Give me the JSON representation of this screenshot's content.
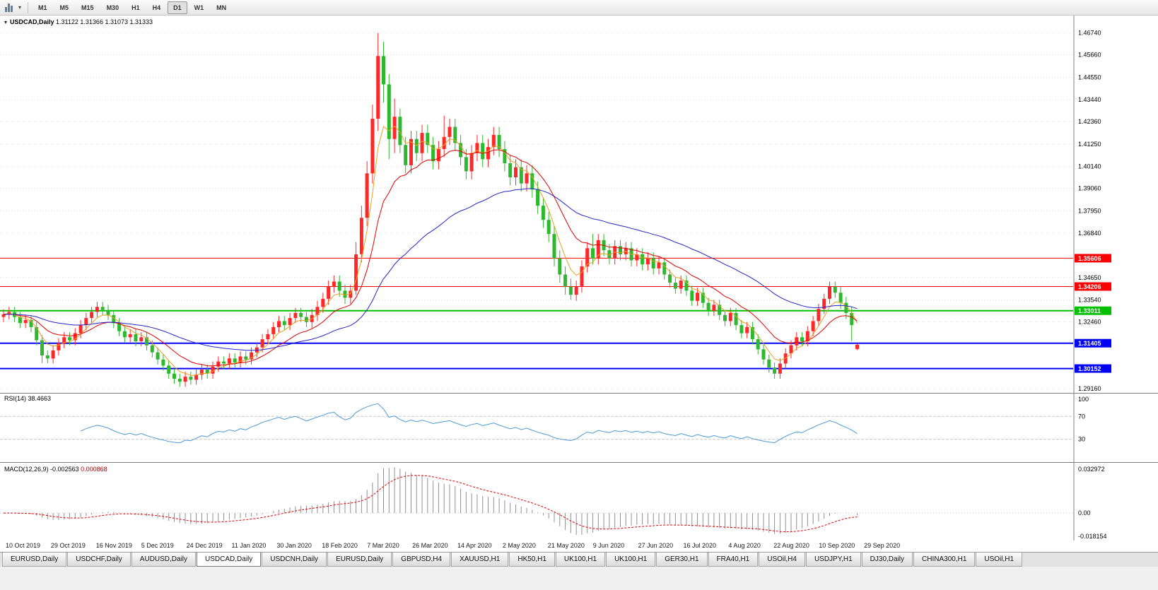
{
  "toolbar": {
    "timeframes": [
      "M1",
      "M5",
      "M15",
      "M30",
      "H1",
      "H4",
      "D1",
      "W1",
      "MN"
    ],
    "active_timeframe": "D1"
  },
  "chart": {
    "symbol_title": "USDCAD,Daily",
    "ohlc_text": "1.31122 1.31366 1.31073 1.31333",
    "colors": {
      "up": "#ff2828",
      "down": "#2eb82e",
      "grid": "#dcdcdc",
      "rsi_line": "#4f9bd5",
      "macd_hist": "#909090",
      "macd_signal": "#e00000",
      "divider": "#808080"
    },
    "overlays": [
      {
        "name": "ma-fast-line",
        "period": 5,
        "color": "#e8a020",
        "width": 1
      },
      {
        "name": "ma-mid-line",
        "period": 13,
        "color": "#e00000",
        "width": 1
      },
      {
        "name": "ma-slow-line",
        "period": 40,
        "color": "#2424c8",
        "width": 1
      }
    ]
  },
  "price_axis": {
    "labels": [
      "1.46740",
      "1.45660",
      "1.44550",
      "1.43440",
      "1.42360",
      "1.41250",
      "1.40140",
      "1.39060",
      "1.37950",
      "1.36840",
      "1.34650",
      "1.33540",
      "1.32460",
      "1.29160"
    ],
    "levels": [
      {
        "text": "1.35606",
        "price": 1.35606,
        "color": "#ff0000",
        "lw": 1
      },
      {
        "text": "1.34206",
        "price": 1.34206,
        "color": "#ff0000",
        "lw": 1
      },
      {
        "text": "1.33011",
        "price": 1.33011,
        "color": "#00c000",
        "lw": 2
      },
      {
        "text": "1.31405",
        "price": 1.31405,
        "color": "#0000ff",
        "lw": 2
      },
      {
        "text": "1.30152",
        "price": 1.30152,
        "color": "#0000ff",
        "lw": 2
      }
    ]
  },
  "rsi_panel": {
    "name": "RSI(14)",
    "value": "38.4663",
    "axis_labels": [
      "100",
      "70",
      "30"
    ],
    "level_lines": [
      70,
      30
    ]
  },
  "macd_panel": {
    "name": "MACD(12,26,9)",
    "main_value": "-0.002563",
    "signal_value": "0.000868",
    "axis_top": "0.032972",
    "axis_zero": "0.00",
    "axis_bottom": "-0.018154"
  },
  "time_axis": {
    "labels": [
      "10 Oct 2019",
      "29 Oct 2019",
      "16 Nov 2019",
      "5 Dec 2019",
      "24 Dec 2019",
      "11 Jan 2020",
      "30 Jan 2020",
      "18 Feb 2020",
      "7 Mar 2020",
      "26 Mar 2020",
      "14 Apr 2020",
      "2 May 2020",
      "21 May 2020",
      "9 Jun 2020",
      "27 Jun 2020",
      "16 Jul 2020",
      "4 Aug 2020",
      "22 Aug 2020",
      "10 Sep 2020",
      "29 Sep 2020"
    ]
  },
  "tabs": {
    "items": [
      "EURUSD,Daily",
      "USDCHF,Daily",
      "AUDUSD,Daily",
      "USDCAD,Daily",
      "USDCNH,Daily",
      "EURUSD,Daily",
      "GBPUSD,H4",
      "XAUUSD,H1",
      "HK50,H1",
      "UK100,H1",
      "UK100,H1",
      "GER30,H1",
      "FRA40,H1",
      "USOil,H4",
      "USDJPY,H1",
      "DJ30,Daily",
      "CHINA300,H1",
      "USOil,H1"
    ],
    "active_index": 3
  },
  "chart_data": {
    "type": "candlestick",
    "symbol": "USDCAD",
    "timeframe": "Daily",
    "title": "USDCAD,Daily",
    "ohlc_current": {
      "open": 1.31122,
      "high": 1.31366,
      "low": 1.31073,
      "close": 1.31333
    },
    "price_range": [
      1.2895,
      1.476
    ],
    "indicator_values": {
      "rsi": 38.4663,
      "macd_main": -0.002563,
      "macd_signal": 0.000868
    },
    "candles": [
      [
        1.327,
        1.3308,
        1.3245,
        1.3283
      ],
      [
        1.3283,
        1.332,
        1.3258,
        1.3295
      ],
      [
        1.3295,
        1.332,
        1.3245,
        1.327
      ],
      [
        1.327,
        1.3295,
        1.3215,
        1.324
      ],
      [
        1.324,
        1.328,
        1.3215,
        1.3255
      ],
      [
        1.3255,
        1.328,
        1.3195,
        1.322
      ],
      [
        1.322,
        1.3245,
        1.313,
        1.3155
      ],
      [
        1.3155,
        1.318,
        1.3042,
        1.308
      ],
      [
        1.308,
        1.3105,
        1.3042,
        1.3065
      ],
      [
        1.3065,
        1.313,
        1.304,
        1.3105
      ],
      [
        1.3105,
        1.3165,
        1.308,
        1.314
      ],
      [
        1.314,
        1.3195,
        1.3115,
        1.317
      ],
      [
        1.317,
        1.3195,
        1.313,
        1.3155
      ],
      [
        1.3155,
        1.3215,
        1.313,
        1.319
      ],
      [
        1.319,
        1.3255,
        1.3165,
        1.323
      ],
      [
        1.323,
        1.329,
        1.3205,
        1.3265
      ],
      [
        1.3265,
        1.332,
        1.324,
        1.3295
      ],
      [
        1.3295,
        1.3345,
        1.327,
        1.332
      ],
      [
        1.332,
        1.3345,
        1.328,
        1.3305
      ],
      [
        1.3305,
        1.333,
        1.3255,
        1.328
      ],
      [
        1.328,
        1.3305,
        1.3215,
        1.324
      ],
      [
        1.324,
        1.3265,
        1.3175,
        1.32
      ],
      [
        1.32,
        1.3225,
        1.3145,
        1.317
      ],
      [
        1.317,
        1.321,
        1.3145,
        1.3185
      ],
      [
        1.3185,
        1.321,
        1.3125,
        1.315
      ],
      [
        1.315,
        1.3195,
        1.3125,
        1.317
      ],
      [
        1.317,
        1.3195,
        1.3105,
        1.313
      ],
      [
        1.313,
        1.3155,
        1.307,
        1.3095
      ],
      [
        1.3095,
        1.312,
        1.3035,
        1.306
      ],
      [
        1.306,
        1.3085,
        1.3005,
        1.303
      ],
      [
        1.303,
        1.3055,
        1.2965,
        1.299
      ],
      [
        1.299,
        1.3015,
        1.294,
        1.2965
      ],
      [
        1.2965,
        1.299,
        1.2925,
        1.295
      ],
      [
        1.295,
        1.3,
        1.2925,
        1.2975
      ],
      [
        1.2975,
        1.3,
        1.2935,
        1.296
      ],
      [
        1.296,
        1.301,
        1.2935,
        1.2985
      ],
      [
        1.2985,
        1.3035,
        1.296,
        1.301
      ],
      [
        1.301,
        1.3035,
        1.2965,
        1.299
      ],
      [
        1.299,
        1.305,
        1.2965,
        1.3025
      ],
      [
        1.3025,
        1.3075,
        1.3,
        1.305
      ],
      [
        1.305,
        1.3075,
        1.3015,
        1.304
      ],
      [
        1.304,
        1.309,
        1.3015,
        1.3065
      ],
      [
        1.3065,
        1.309,
        1.302,
        1.3045
      ],
      [
        1.3045,
        1.31,
        1.302,
        1.3075
      ],
      [
        1.3075,
        1.31,
        1.3035,
        1.306
      ],
      [
        1.306,
        1.312,
        1.3035,
        1.3095
      ],
      [
        1.3095,
        1.3145,
        1.307,
        1.312
      ],
      [
        1.312,
        1.3185,
        1.3095,
        1.316
      ],
      [
        1.316,
        1.321,
        1.3135,
        1.3185
      ],
      [
        1.3185,
        1.3245,
        1.316,
        1.322
      ],
      [
        1.322,
        1.3275,
        1.3195,
        1.325
      ],
      [
        1.325,
        1.3275,
        1.3205,
        1.323
      ],
      [
        1.323,
        1.329,
        1.3205,
        1.3265
      ],
      [
        1.3265,
        1.3315,
        1.324,
        1.329
      ],
      [
        1.329,
        1.3315,
        1.3245,
        1.327
      ],
      [
        1.327,
        1.3295,
        1.322,
        1.3245
      ],
      [
        1.3245,
        1.331,
        1.3215,
        1.328
      ],
      [
        1.328,
        1.335,
        1.325,
        1.332
      ],
      [
        1.332,
        1.339,
        1.329,
        1.336
      ],
      [
        1.336,
        1.345,
        1.333,
        1.342
      ],
      [
        1.342,
        1.3475,
        1.339,
        1.3445
      ],
      [
        1.3445,
        1.3475,
        1.337,
        1.34
      ],
      [
        1.34,
        1.343,
        1.3335,
        1.3365
      ],
      [
        1.3365,
        1.343,
        1.3335,
        1.34
      ],
      [
        1.34,
        1.364,
        1.338,
        1.358
      ],
      [
        1.358,
        1.382,
        1.354,
        1.376
      ],
      [
        1.376,
        1.404,
        1.372,
        1.398
      ],
      [
        1.398,
        1.432,
        1.393,
        1.425
      ],
      [
        1.425,
        1.4674,
        1.419,
        1.456
      ],
      [
        1.456,
        1.463,
        1.433,
        1.442
      ],
      [
        1.442,
        1.447,
        1.405,
        1.415
      ],
      [
        1.415,
        1.435,
        1.408,
        1.426
      ],
      [
        1.426,
        1.43,
        1.408,
        1.412
      ],
      [
        1.412,
        1.416,
        1.398,
        1.402
      ],
      [
        1.402,
        1.419,
        1.398,
        1.415
      ],
      [
        1.415,
        1.419,
        1.404,
        1.408
      ],
      [
        1.408,
        1.422,
        1.404,
        1.418
      ],
      [
        1.418,
        1.422,
        1.408,
        1.412
      ],
      [
        1.412,
        1.416,
        1.4,
        1.404
      ],
      [
        1.404,
        1.414,
        1.4,
        1.41
      ],
      [
        1.41,
        1.4265,
        1.406,
        1.416
      ],
      [
        1.416,
        1.425,
        1.412,
        1.421
      ],
      [
        1.421,
        1.425,
        1.409,
        1.413
      ],
      [
        1.413,
        1.417,
        1.402,
        1.406
      ],
      [
        1.406,
        1.41,
        1.395,
        1.399
      ],
      [
        1.399,
        1.412,
        1.395,
        1.408
      ],
      [
        1.408,
        1.417,
        1.404,
        1.413
      ],
      [
        1.413,
        1.417,
        1.401,
        1.405
      ],
      [
        1.405,
        1.415,
        1.401,
        1.411
      ],
      [
        1.411,
        1.421,
        1.407,
        1.417
      ],
      [
        1.417,
        1.421,
        1.406,
        1.41
      ],
      [
        1.41,
        1.414,
        1.399,
        1.403
      ],
      [
        1.403,
        1.407,
        1.392,
        1.396
      ],
      [
        1.396,
        1.405,
        1.392,
        1.401
      ],
      [
        1.401,
        1.405,
        1.389,
        1.393
      ],
      [
        1.393,
        1.402,
        1.389,
        1.398
      ],
      [
        1.398,
        1.402,
        1.386,
        1.39
      ],
      [
        1.39,
        1.394,
        1.378,
        1.382
      ],
      [
        1.382,
        1.386,
        1.371,
        1.375
      ],
      [
        1.375,
        1.379,
        1.364,
        1.368
      ],
      [
        1.368,
        1.372,
        1.352,
        1.356
      ],
      [
        1.356,
        1.36,
        1.344,
        1.348
      ],
      [
        1.348,
        1.352,
        1.338,
        1.342
      ],
      [
        1.342,
        1.346,
        1.3355,
        1.338
      ],
      [
        1.338,
        1.345,
        1.335,
        1.342
      ],
      [
        1.342,
        1.355,
        1.339,
        1.352
      ],
      [
        1.352,
        1.364,
        1.349,
        1.361
      ],
      [
        1.361,
        1.368,
        1.353,
        1.356
      ],
      [
        1.356,
        1.368,
        1.353,
        1.365
      ],
      [
        1.365,
        1.368,
        1.357,
        1.36
      ],
      [
        1.36,
        1.363,
        1.353,
        1.356
      ],
      [
        1.356,
        1.365,
        1.353,
        1.362
      ],
      [
        1.362,
        1.365,
        1.355,
        1.358
      ],
      [
        1.358,
        1.364,
        1.355,
        1.361
      ],
      [
        1.361,
        1.364,
        1.352,
        1.355
      ],
      [
        1.355,
        1.361,
        1.352,
        1.358
      ],
      [
        1.358,
        1.361,
        1.35,
        1.353
      ],
      [
        1.353,
        1.359,
        1.35,
        1.356
      ],
      [
        1.356,
        1.359,
        1.348,
        1.351
      ],
      [
        1.351,
        1.357,
        1.348,
        1.354
      ],
      [
        1.354,
        1.3565,
        1.3455,
        1.348
      ],
      [
        1.348,
        1.3505,
        1.3415,
        1.344
      ],
      [
        1.344,
        1.3465,
        1.3385,
        1.341
      ],
      [
        1.341,
        1.3475,
        1.3385,
        1.345
      ],
      [
        1.345,
        1.3475,
        1.3375,
        1.34
      ],
      [
        1.34,
        1.3425,
        1.3325,
        1.335
      ],
      [
        1.335,
        1.3415,
        1.3325,
        1.339
      ],
      [
        1.339,
        1.3415,
        1.3315,
        1.334
      ],
      [
        1.334,
        1.3365,
        1.3275,
        1.33
      ],
      [
        1.33,
        1.3355,
        1.3275,
        1.333
      ],
      [
        1.333,
        1.3355,
        1.3255,
        1.328
      ],
      [
        1.328,
        1.3305,
        1.3225,
        1.325
      ],
      [
        1.325,
        1.3315,
        1.3225,
        1.329
      ],
      [
        1.329,
        1.3315,
        1.3205,
        1.323
      ],
      [
        1.323,
        1.3255,
        1.3165,
        1.319
      ],
      [
        1.319,
        1.3245,
        1.3165,
        1.322
      ],
      [
        1.322,
        1.3245,
        1.3135,
        1.316
      ],
      [
        1.316,
        1.3185,
        1.3085,
        1.311
      ],
      [
        1.311,
        1.3135,
        1.3035,
        1.306
      ],
      [
        1.306,
        1.3085,
        1.2995,
        1.302
      ],
      [
        1.302,
        1.3045,
        1.2965,
        1.299
      ],
      [
        1.299,
        1.3065,
        1.2965,
        1.304
      ],
      [
        1.304,
        1.3115,
        1.3015,
        1.309
      ],
      [
        1.309,
        1.3155,
        1.3065,
        1.313
      ],
      [
        1.313,
        1.3195,
        1.3105,
        1.317
      ],
      [
        1.317,
        1.3195,
        1.3125,
        1.315
      ],
      [
        1.315,
        1.3225,
        1.3125,
        1.32
      ],
      [
        1.32,
        1.3275,
        1.3175,
        1.325
      ],
      [
        1.325,
        1.3335,
        1.3225,
        1.331
      ],
      [
        1.331,
        1.3385,
        1.3285,
        1.336
      ],
      [
        1.336,
        1.3445,
        1.3335,
        1.342
      ],
      [
        1.342,
        1.3445,
        1.3365,
        1.339
      ],
      [
        1.339,
        1.342,
        1.331,
        1.334
      ],
      [
        1.334,
        1.337,
        1.326,
        1.329
      ],
      [
        1.329,
        1.332,
        1.315,
        1.323
      ],
      [
        1.3112,
        1.3137,
        1.3107,
        1.3133
      ]
    ]
  }
}
